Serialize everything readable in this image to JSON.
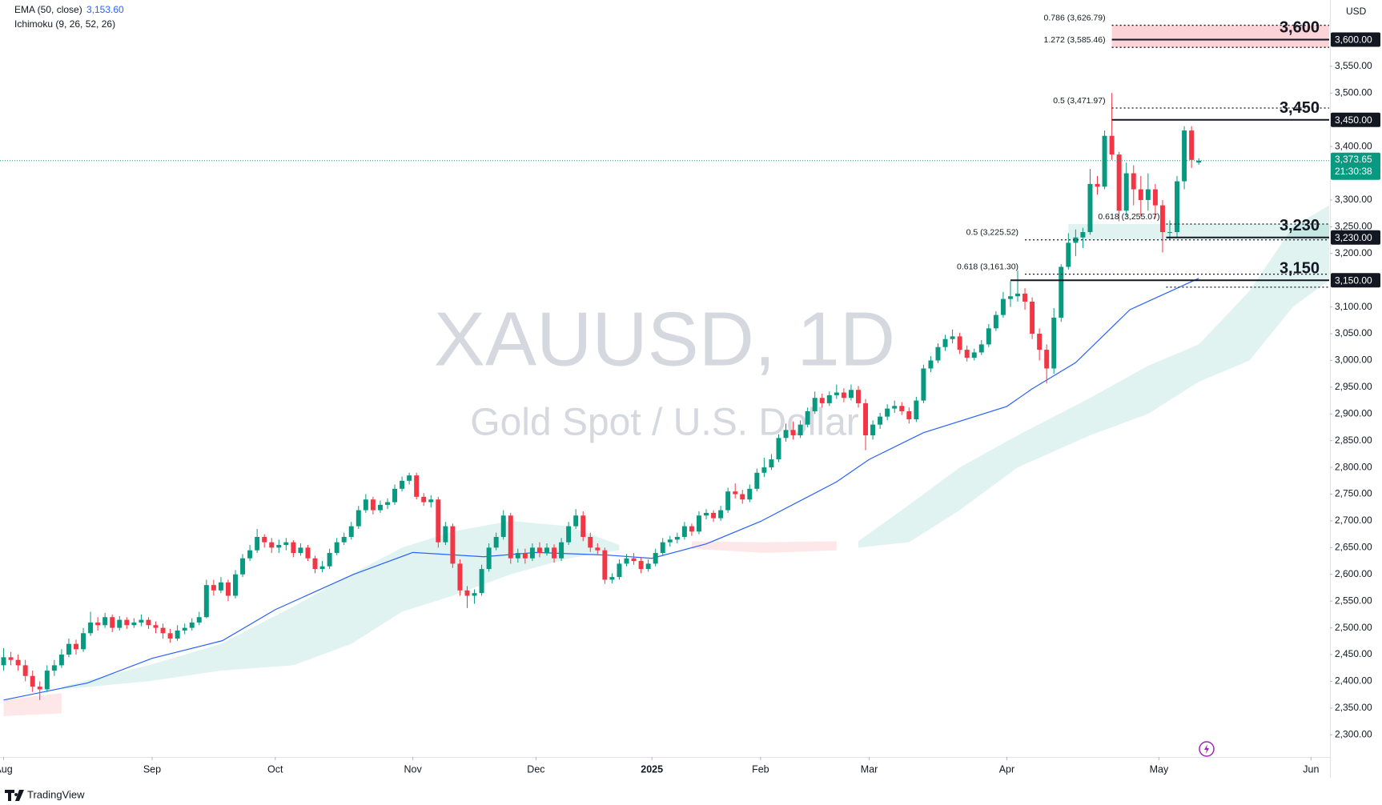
{
  "chart_data": {
    "type": "candlestick",
    "title": "XAUUSD, 1D",
    "subtitle": "Gold Spot / U.S. Dollar",
    "currency": "USD",
    "brand": "TradingView",
    "up_color": "#089981",
    "down_color": "#f23645",
    "indicators": [
      {
        "name": "EMA (50, close)",
        "value_label": "3,153.60",
        "color": "#2962ff"
      },
      {
        "name": "Ichimoku (9, 26, 52, 26)"
      }
    ],
    "xlim": [
      -0.5,
      183
    ],
    "xticks": [
      {
        "value": 0,
        "label": "Aug"
      },
      {
        "value": 20.5,
        "label": "Sep"
      },
      {
        "value": 37.5,
        "label": "Oct"
      },
      {
        "value": 56.5,
        "label": "Nov"
      },
      {
        "value": 73.5,
        "label": "Dec"
      },
      {
        "value": 89.5,
        "label": "2025"
      },
      {
        "value": 104.5,
        "label": "Feb"
      },
      {
        "value": 119.5,
        "label": "Mar"
      },
      {
        "value": 138.5,
        "label": "Apr"
      },
      {
        "value": 159.5,
        "label": "May"
      },
      {
        "value": 180.5,
        "label": "Jun"
      }
    ],
    "ylim": [
      2260,
      3674
    ],
    "yticks": [
      {
        "value": 2300,
        "label": "2,300.00"
      },
      {
        "value": 2350,
        "label": "2,350.00"
      },
      {
        "value": 2400,
        "label": "2,400.00"
      },
      {
        "value": 2450,
        "label": "2,450.00"
      },
      {
        "value": 2500,
        "label": "2,500.00"
      },
      {
        "value": 2550,
        "label": "2,550.00"
      },
      {
        "value": 2600,
        "label": "2,600.00"
      },
      {
        "value": 2650,
        "label": "2,650.00"
      },
      {
        "value": 2700,
        "label": "2,700.00"
      },
      {
        "value": 2750,
        "label": "2,750.00"
      },
      {
        "value": 2800,
        "label": "2,800.00"
      },
      {
        "value": 2850,
        "label": "2,850.00"
      },
      {
        "value": 2900,
        "label": "2,900.00"
      },
      {
        "value": 2950,
        "label": "2,950.00"
      },
      {
        "value": 3000,
        "label": "3,000.00"
      },
      {
        "value": 3050,
        "label": "3,050.00"
      },
      {
        "value": 3100,
        "label": "3,100.00"
      },
      {
        "value": 3200,
        "label": "3,200.00"
      },
      {
        "value": 3250,
        "label": "3,250.00"
      },
      {
        "value": 3300,
        "label": "3,300.00"
      },
      {
        "value": 3400,
        "label": "3,400.00"
      },
      {
        "value": 3500,
        "label": "3,500.00"
      },
      {
        "value": 3550,
        "label": "3,550.00"
      }
    ],
    "grid": false,
    "candles": [
      [
        2430,
        2462,
        2420,
        2445
      ],
      [
        2445,
        2455,
        2430,
        2440
      ],
      [
        2440,
        2450,
        2420,
        2430
      ],
      [
        2430,
        2440,
        2400,
        2410
      ],
      [
        2410,
        2420,
        2380,
        2390
      ],
      [
        2390,
        2400,
        2365,
        2385
      ],
      [
        2385,
        2430,
        2380,
        2420
      ],
      [
        2420,
        2440,
        2410,
        2430
      ],
      [
        2430,
        2460,
        2425,
        2450
      ],
      [
        2450,
        2480,
        2445,
        2470
      ],
      [
        2470,
        2478,
        2450,
        2460
      ],
      [
        2460,
        2500,
        2455,
        2490
      ],
      [
        2490,
        2530,
        2485,
        2510
      ],
      [
        2510,
        2520,
        2495,
        2505
      ],
      [
        2505,
        2528,
        2500,
        2520
      ],
      [
        2520,
        2525,
        2492,
        2500
      ],
      [
        2500,
        2522,
        2495,
        2515
      ],
      [
        2515,
        2520,
        2498,
        2505
      ],
      [
        2505,
        2518,
        2500,
        2510
      ],
      [
        2510,
        2525,
        2503,
        2515
      ],
      [
        2515,
        2520,
        2498,
        2505
      ],
      [
        2505,
        2512,
        2490,
        2500
      ],
      [
        2500,
        2508,
        2480,
        2490
      ],
      [
        2490,
        2498,
        2472,
        2480
      ],
      [
        2480,
        2505,
        2476,
        2495
      ],
      [
        2495,
        2508,
        2488,
        2500
      ],
      [
        2500,
        2518,
        2495,
        2510
      ],
      [
        2510,
        2530,
        2505,
        2520
      ],
      [
        2520,
        2590,
        2518,
        2580
      ],
      [
        2580,
        2590,
        2560,
        2570
      ],
      [
        2570,
        2595,
        2565,
        2585
      ],
      [
        2585,
        2590,
        2550,
        2560
      ],
      [
        2560,
        2608,
        2555,
        2600
      ],
      [
        2600,
        2638,
        2595,
        2630
      ],
      [
        2630,
        2655,
        2625,
        2645
      ],
      [
        2645,
        2685,
        2640,
        2670
      ],
      [
        2670,
        2675,
        2650,
        2660
      ],
      [
        2660,
        2668,
        2640,
        2650
      ],
      [
        2650,
        2665,
        2640,
        2655
      ],
      [
        2655,
        2668,
        2645,
        2660
      ],
      [
        2660,
        2664,
        2632,
        2640
      ],
      [
        2640,
        2658,
        2635,
        2650
      ],
      [
        2650,
        2655,
        2625,
        2630
      ],
      [
        2630,
        2635,
        2602,
        2610
      ],
      [
        2610,
        2625,
        2604,
        2615
      ],
      [
        2615,
        2648,
        2610,
        2640
      ],
      [
        2640,
        2668,
        2636,
        2660
      ],
      [
        2660,
        2678,
        2655,
        2670
      ],
      [
        2670,
        2698,
        2665,
        2690
      ],
      [
        2690,
        2728,
        2685,
        2720
      ],
      [
        2720,
        2750,
        2715,
        2740
      ],
      [
        2740,
        2745,
        2712,
        2720
      ],
      [
        2720,
        2738,
        2715,
        2730
      ],
      [
        2730,
        2742,
        2722,
        2735
      ],
      [
        2735,
        2768,
        2730,
        2760
      ],
      [
        2760,
        2783,
        2755,
        2775
      ],
      [
        2775,
        2790,
        2768,
        2785
      ],
      [
        2785,
        2790,
        2740,
        2745
      ],
      [
        2745,
        2752,
        2728,
        2735
      ],
      [
        2735,
        2748,
        2725,
        2740
      ],
      [
        2740,
        2745,
        2650,
        2660
      ],
      [
        2660,
        2698,
        2655,
        2690
      ],
      [
        2690,
        2695,
        2612,
        2620
      ],
      [
        2620,
        2628,
        2560,
        2570
      ],
      [
        2570,
        2578,
        2537,
        2560
      ],
      [
        2560,
        2572,
        2545,
        2565
      ],
      [
        2565,
        2618,
        2560,
        2610
      ],
      [
        2610,
        2658,
        2605,
        2650
      ],
      [
        2650,
        2678,
        2645,
        2670
      ],
      [
        2670,
        2720,
        2665,
        2710
      ],
      [
        2710,
        2715,
        2620,
        2630
      ],
      [
        2630,
        2648,
        2622,
        2640
      ],
      [
        2640,
        2648,
        2620,
        2630
      ],
      [
        2630,
        2658,
        2625,
        2650
      ],
      [
        2650,
        2660,
        2632,
        2640
      ],
      [
        2640,
        2658,
        2635,
        2650
      ],
      [
        2650,
        2656,
        2622,
        2630
      ],
      [
        2630,
        2668,
        2625,
        2660
      ],
      [
        2660,
        2698,
        2655,
        2690
      ],
      [
        2690,
        2722,
        2685,
        2710
      ],
      [
        2710,
        2718,
        2662,
        2670
      ],
      [
        2670,
        2678,
        2642,
        2650
      ],
      [
        2650,
        2658,
        2638,
        2645
      ],
      [
        2645,
        2650,
        2582,
        2590
      ],
      [
        2590,
        2602,
        2583,
        2595
      ],
      [
        2595,
        2628,
        2590,
        2620
      ],
      [
        2620,
        2638,
        2615,
        2630
      ],
      [
        2630,
        2640,
        2618,
        2625
      ],
      [
        2625,
        2632,
        2602,
        2610
      ],
      [
        2610,
        2628,
        2605,
        2620
      ],
      [
        2620,
        2648,
        2615,
        2640
      ],
      [
        2640,
        2668,
        2635,
        2660
      ],
      [
        2660,
        2672,
        2652,
        2665
      ],
      [
        2665,
        2678,
        2658,
        2670
      ],
      [
        2670,
        2698,
        2665,
        2690
      ],
      [
        2690,
        2695,
        2672,
        2680
      ],
      [
        2680,
        2718,
        2675,
        2710
      ],
      [
        2710,
        2722,
        2703,
        2715
      ],
      [
        2715,
        2720,
        2698,
        2705
      ],
      [
        2705,
        2728,
        2700,
        2720
      ],
      [
        2720,
        2762,
        2715,
        2755
      ],
      [
        2755,
        2770,
        2742,
        2750
      ],
      [
        2750,
        2758,
        2732,
        2740
      ],
      [
        2740,
        2768,
        2735,
        2760
      ],
      [
        2760,
        2798,
        2755,
        2790
      ],
      [
        2790,
        2818,
        2782,
        2800
      ],
      [
        2800,
        2825,
        2795,
        2815
      ],
      [
        2815,
        2862,
        2810,
        2855
      ],
      [
        2855,
        2882,
        2848,
        2870
      ],
      [
        2870,
        2886,
        2852,
        2860
      ],
      [
        2860,
        2888,
        2855,
        2880
      ],
      [
        2880,
        2912,
        2875,
        2905
      ],
      [
        2905,
        2942,
        2900,
        2930
      ],
      [
        2930,
        2938,
        2912,
        2920
      ],
      [
        2920,
        2942,
        2915,
        2935
      ],
      [
        2935,
        2955,
        2928,
        2940
      ],
      [
        2940,
        2948,
        2922,
        2930
      ],
      [
        2930,
        2955,
        2925,
        2945
      ],
      [
        2945,
        2952,
        2912,
        2920
      ],
      [
        2920,
        2928,
        2832,
        2860
      ],
      [
        2860,
        2888,
        2852,
        2880
      ],
      [
        2880,
        2902,
        2872,
        2895
      ],
      [
        2895,
        2918,
        2888,
        2910
      ],
      [
        2910,
        2925,
        2902,
        2915
      ],
      [
        2915,
        2922,
        2898,
        2905
      ],
      [
        2905,
        2912,
        2882,
        2890
      ],
      [
        2890,
        2932,
        2885,
        2925
      ],
      [
        2925,
        2992,
        2920,
        2985
      ],
      [
        2985,
        3008,
        2978,
        3000
      ],
      [
        3000,
        3032,
        2995,
        3025
      ],
      [
        3025,
        3048,
        3018,
        3040
      ],
      [
        3040,
        3058,
        3032,
        3045
      ],
      [
        3045,
        3052,
        3012,
        3020
      ],
      [
        3020,
        3028,
        2998,
        3005
      ],
      [
        3005,
        3022,
        3000,
        3015
      ],
      [
        3015,
        3038,
        3010,
        3030
      ],
      [
        3030,
        3068,
        3025,
        3060
      ],
      [
        3060,
        3092,
        3055,
        3085
      ],
      [
        3085,
        3128,
        3080,
        3115
      ],
      [
        3115,
        3148,
        3100,
        3120
      ],
      [
        3120,
        3168,
        3110,
        3125
      ],
      [
        3125,
        3135,
        3095,
        3110
      ],
      [
        3110,
        3118,
        3040,
        3050
      ],
      [
        3050,
        3060,
        3000,
        3020
      ],
      [
        3020,
        3030,
        2957,
        2985
      ],
      [
        2985,
        3098,
        2975,
        3080
      ],
      [
        3080,
        3180,
        3072,
        3175
      ],
      [
        3175,
        3238,
        3170,
        3220
      ],
      [
        3220,
        3245,
        3195,
        3230
      ],
      [
        3230,
        3248,
        3210,
        3240
      ],
      [
        3240,
        3358,
        3235,
        3330
      ],
      [
        3330,
        3345,
        3310,
        3325
      ],
      [
        3325,
        3430,
        3320,
        3420
      ],
      [
        3420,
        3500,
        3375,
        3385
      ],
      [
        3385,
        3390,
        3260,
        3280
      ],
      [
        3280,
        3370,
        3270,
        3350
      ],
      [
        3350,
        3365,
        3290,
        3320
      ],
      [
        3320,
        3345,
        3270,
        3300
      ],
      [
        3300,
        3350,
        3280,
        3320
      ],
      [
        3320,
        3330,
        3265,
        3290
      ],
      [
        3290,
        3300,
        3202,
        3240
      ],
      [
        3240,
        3262,
        3225,
        3240
      ],
      [
        3240,
        3345,
        3230,
        3335
      ],
      [
        3335,
        3438,
        3320,
        3430
      ],
      [
        3430,
        3438,
        3360,
        3375
      ],
      [
        3370,
        3378,
        3366,
        3373.65
      ]
    ],
    "ema": {
      "x": [
        0,
        11.6,
        20.5,
        30.2,
        37.5,
        48.3,
        56.5,
        66.3,
        73.5,
        83.4,
        89.5,
        97,
        104.5,
        115,
        119.5,
        127,
        138.5,
        142,
        148,
        155.5,
        165
      ],
      "values": [
        2365,
        2397,
        2443,
        2476,
        2534,
        2600,
        2641,
        2633,
        2641,
        2636,
        2630,
        2657,
        2699,
        2773,
        2815,
        2865,
        2914,
        2947,
        2996,
        3095,
        3153.6
      ]
    },
    "clouds": [
      {
        "color": "#f23645",
        "x": [
          0,
          8
        ],
        "upper": [
          2365,
          2378
        ],
        "lower": [
          2335,
          2340
        ]
      },
      {
        "color": "#089981",
        "x": [
          8,
          20,
          30,
          40,
          48,
          55,
          62,
          70,
          78,
          85
        ],
        "upper": [
          2390,
          2430,
          2470,
          2540,
          2600,
          2650,
          2680,
          2700,
          2690,
          2655
        ],
        "lower": [
          2385,
          2400,
          2420,
          2430,
          2470,
          2530,
          2560,
          2600,
          2630,
          2645
        ]
      },
      {
        "color": "#f23645",
        "x": [
          95,
          105,
          115
        ],
        "upper": [
          2662,
          2660,
          2662
        ],
        "lower": [
          2648,
          2640,
          2645
        ]
      },
      {
        "color": "#089981",
        "x": [
          118,
          125,
          132,
          140,
          150,
          158,
          165,
          172,
          178,
          183
        ],
        "upper": [
          2662,
          2730,
          2800,
          2860,
          2930,
          2990,
          3030,
          3130,
          3250,
          3290
        ],
        "lower": [
          2650,
          2660,
          2720,
          2800,
          2860,
          2900,
          2960,
          3000,
          3100,
          3150
        ]
      }
    ],
    "levels": [
      {
        "value": 3600,
        "label": "3,600",
        "tag": "3,600.00"
      },
      {
        "value": 3450,
        "label": "3,450",
        "tag": "3,450.00"
      },
      {
        "value": 3230,
        "label": "3,230",
        "tag": "3,230.00"
      },
      {
        "value": 3150,
        "label": "3,150",
        "tag": "3,150.00"
      }
    ],
    "fib_levels": [
      {
        "value": 3626.79,
        "label": "0.786 (3,626.79)"
      },
      {
        "value": 3585.46,
        "label": "1.272 (3,585.46)"
      },
      {
        "value": 3471.97,
        "label": "0.5 (3,471.97)"
      },
      {
        "value": 3255.07,
        "label": "0.618 (3,255.07)"
      },
      {
        "value": 3225.52,
        "label": "0.5 (3,225.52)"
      },
      {
        "value": 3161.3,
        "label": "0.618 (3,161.30)"
      },
      {
        "value": 3137
      }
    ],
    "last_price": {
      "value": 3373.65,
      "label": "3,373.65",
      "countdown": "21:30:38"
    }
  }
}
